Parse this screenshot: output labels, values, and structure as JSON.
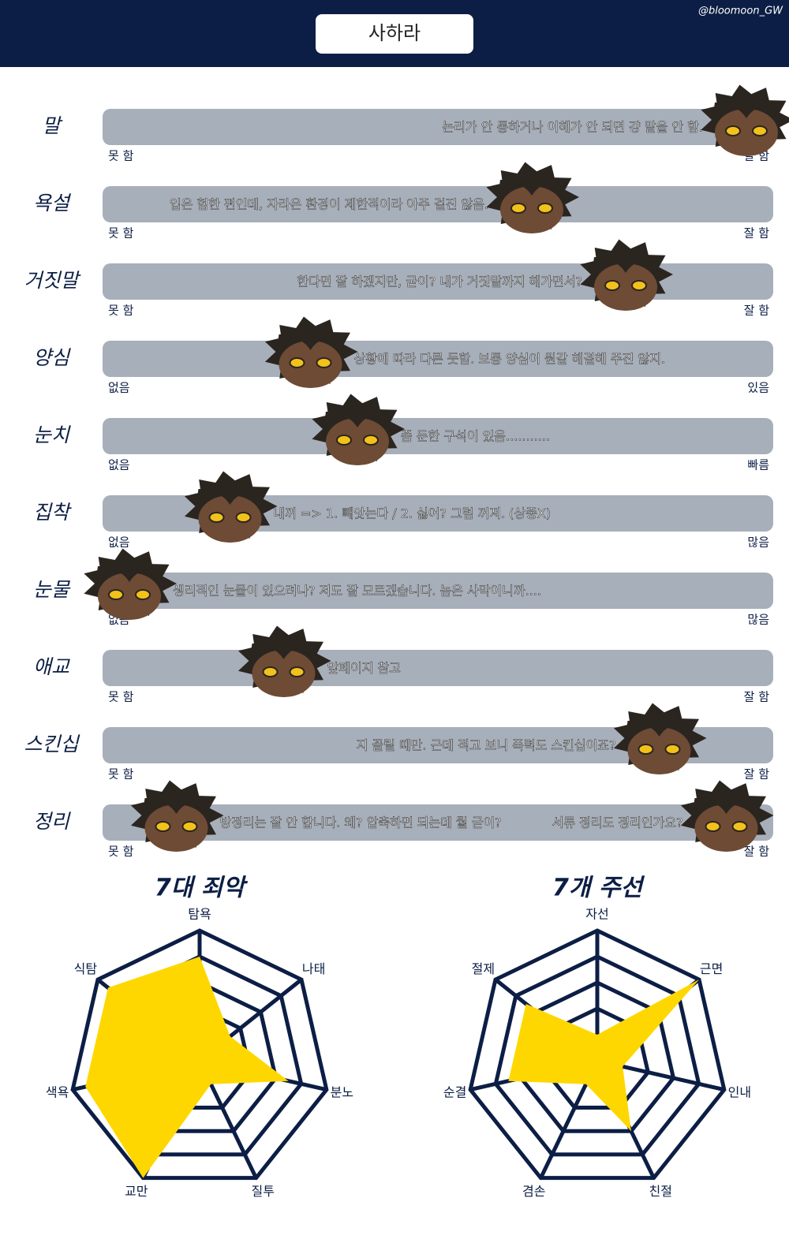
{
  "header": {
    "title": "사하라",
    "credit": "@bloomoon_GW"
  },
  "rows": [
    {
      "label": "말",
      "comments": [
        "논리가 안 통하거나 이해가 안 되면 걍 말을 안 함."
      ],
      "positions": [
        96
      ],
      "left": "못 함",
      "right": "잘 함"
    },
    {
      "label": "욕설",
      "comments": [
        "입은 험한 편인데, 자라온 환경이 제한적이라 아주 걸진 않음."
      ],
      "positions": [
        64
      ],
      "left": "못 함",
      "right": "잘 함"
    },
    {
      "label": "거짓말",
      "comments": [
        "한다면 잘 하겠지만, 굳이? 내가 거짓말까지 해가면서?"
      ],
      "positions": [
        78
      ],
      "left": "못 함",
      "right": "잘 함"
    },
    {
      "label": "양심",
      "comments": [
        "상황에 따라 다른 듯함. 보통 양심이 뭔갈 해결해 주진 않지."
      ],
      "positions": [
        31
      ],
      "left": "없음",
      "right": "있음"
    },
    {
      "label": "눈치",
      "comments": [
        "좀 둔한 구석이 있음..........."
      ],
      "positions": [
        38
      ],
      "left": "없음",
      "right": "빠름"
    },
    {
      "label": "집착",
      "comments": [
        "내꺼 => 1. 빼앗는다 / 2. 싫어? 그럼 꺼져. (상종X)"
      ],
      "positions": [
        19
      ],
      "left": "없음",
      "right": "많음"
    },
    {
      "label": "눈물",
      "comments": [
        "생리적인 눈물이 있으려나? 저도 잘 모르겠습니다. 놈은 사막이니까...."
      ],
      "positions": [
        4
      ],
      "left": "없음",
      "right": "많음"
    },
    {
      "label": "애교",
      "comments": [
        "앞페이지 참고"
      ],
      "positions": [
        27
      ],
      "left": "못 함",
      "right": "잘 함"
    },
    {
      "label": "스킨십",
      "comments": [
        "지 꼴릴 때만. 근데 적고 보니 폭력도 스킨십이죠?"
      ],
      "positions": [
        83
      ],
      "left": "못 함",
      "right": "잘 함"
    },
    {
      "label": "정리",
      "comments": [
        "방정리는 잘 안 합니다. 왜? 압축하면 되는데 뭘 굳이?",
        "서류 정리도 정리인가요?"
      ],
      "positions": [
        11,
        93
      ],
      "left": "못 함",
      "right": "잘 함"
    }
  ],
  "radars": [
    {
      "title": "7대 죄악",
      "axes": [
        "탐욕",
        "나태",
        "분노",
        "질투",
        "교만",
        "색욕",
        "식탐"
      ],
      "values": [
        4,
        1.5,
        3.5,
        1,
        5,
        4.5,
        4.5
      ],
      "rlim": [
        0,
        5
      ],
      "color": "#ffd700"
    },
    {
      "title": "7개 주선",
      "axes": [
        "자선",
        "근면",
        "인내",
        "친절",
        "겸손",
        "순결",
        "절제"
      ],
      "values": [
        1,
        5,
        1,
        3,
        1,
        3.5,
        3.5
      ],
      "rlim": [
        0,
        5
      ],
      "color": "#ffd700"
    }
  ]
}
